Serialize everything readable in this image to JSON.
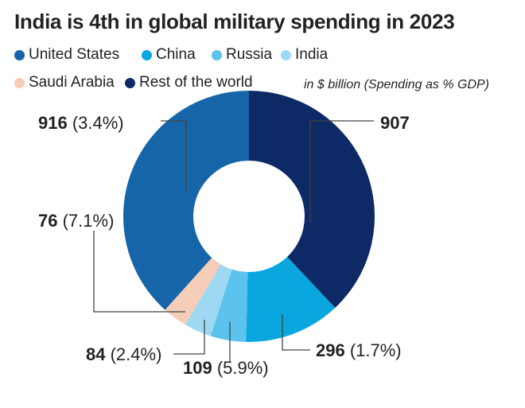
{
  "chart_data": {
    "type": "pie",
    "donut": true,
    "title": "India is 4th in global military spending in 2023",
    "unit_note": "in $ billion (Spending as % GDP)",
    "legend_placement": "top",
    "slices": [
      {
        "name": "Rest of the world",
        "value": 907,
        "gdp_pct": "",
        "color": "#0d2a66"
      },
      {
        "name": "China",
        "value": 296,
        "gdp_pct": "(1.7%)",
        "color": "#0aa6e0"
      },
      {
        "name": "Russia",
        "value": 109,
        "gdp_pct": "(5.9%)",
        "color": "#5cc2ee"
      },
      {
        "name": "India",
        "value": 84,
        "gdp_pct": "(2.4%)",
        "color": "#9fd8f3"
      },
      {
        "name": "Saudi Arabia",
        "value": 76,
        "gdp_pct": "(7.1%)",
        "color": "#f5cdb8"
      },
      {
        "name": "United States",
        "value": 916,
        "gdp_pct": "(3.4%)",
        "color": "#1565a8"
      }
    ],
    "legend": [
      "United States",
      "China",
      "Russia",
      "India",
      "Saudi Arabia",
      "Rest of the world"
    ]
  }
}
